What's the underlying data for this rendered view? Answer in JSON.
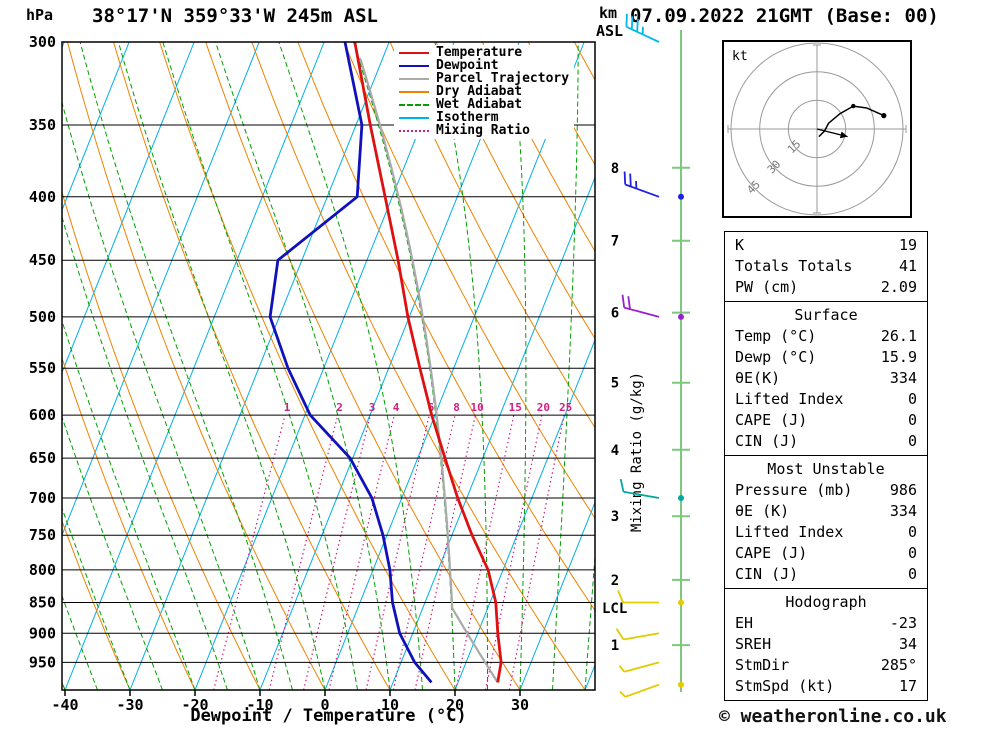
{
  "header": {
    "left_unit": "hPa",
    "title": "38°17'N 359°33'W 245m ASL",
    "right_unit_top": "km",
    "right_unit_bottom": "ASL",
    "datetime": "07.09.2022 21GMT (Base: 00)"
  },
  "legend": {
    "items": [
      {
        "label": "Temperature",
        "color": "#dd1111",
        "style": "solid"
      },
      {
        "label": "Dewpoint",
        "color": "#1111bb",
        "style": "solid"
      },
      {
        "label": "Parcel Trajectory",
        "color": "#aaaaaa",
        "style": "solid"
      },
      {
        "label": "Dry Adiabat",
        "color": "#ef8300",
        "style": "solid"
      },
      {
        "label": "Wet Adiabat",
        "color": "#00a000",
        "style": "dashed"
      },
      {
        "label": "Isotherm",
        "color": "#00b0e8",
        "style": "solid"
      },
      {
        "label": "Mixing Ratio",
        "color": "#d02080",
        "style": "dotted"
      }
    ]
  },
  "axes": {
    "pressure_ticks": [
      300,
      350,
      400,
      450,
      500,
      550,
      600,
      650,
      700,
      750,
      800,
      850,
      900,
      950
    ],
    "temp_ticks": [
      -40,
      -30,
      -20,
      -10,
      0,
      10,
      20,
      30
    ],
    "xlabel": "Dewpoint / Temperature (°C)",
    "right_axis_label": "Mixing Ratio (g/kg)",
    "km_marks": [
      {
        "km": 8,
        "p": 379
      },
      {
        "km": 7,
        "p": 434
      },
      {
        "km": 6,
        "p": 496
      },
      {
        "km": 5,
        "p": 565
      },
      {
        "km": 4,
        "p": 640
      },
      {
        "km": 3,
        "p": 724
      },
      {
        "km": 2,
        "p": 815
      },
      {
        "km": 1,
        "p": 920
      }
    ],
    "lcl": {
      "label": "LCL",
      "p": 859
    }
  },
  "chart_data": {
    "type": "skewt_log_p",
    "pressure_range_hpa": [
      300,
      1000
    ],
    "temp_axis_range_c": [
      -40,
      40
    ],
    "isotherms_c": {
      "start": -100,
      "end": 40,
      "step": 10
    },
    "dry_adiabats_theta_c": {
      "start": -40,
      "end": 120,
      "step": 10
    },
    "wet_adiabats_thetaw_c": {
      "start": -40,
      "end": 40,
      "step": 5
    },
    "mixing_ratio_gkg": [
      1,
      2,
      3,
      4,
      6,
      8,
      10,
      15,
      20,
      25
    ],
    "temperature_profile": [
      [
        986,
        26.1
      ],
      [
        950,
        25.4
      ],
      [
        900,
        23.1
      ],
      [
        850,
        20.9
      ],
      [
        800,
        17.7
      ],
      [
        750,
        13.1
      ],
      [
        700,
        8.6
      ],
      [
        650,
        4.2
      ],
      [
        600,
        -0.5
      ],
      [
        550,
        -5.2
      ],
      [
        500,
        -10.2
      ],
      [
        450,
        -15.2
      ],
      [
        400,
        -21.1
      ],
      [
        350,
        -27.8
      ],
      [
        300,
        -35.3
      ]
    ],
    "dewpoint_profile": [
      [
        986,
        15.9
      ],
      [
        950,
        12.1
      ],
      [
        900,
        8.0
      ],
      [
        850,
        5.0
      ],
      [
        800,
        2.6
      ],
      [
        750,
        -0.6
      ],
      [
        700,
        -4.6
      ],
      [
        650,
        -10.4
      ],
      [
        600,
        -19.2
      ],
      [
        550,
        -25.5
      ],
      [
        500,
        -31.4
      ],
      [
        450,
        -33.7
      ],
      [
        400,
        -25.4
      ],
      [
        350,
        -29.1
      ],
      [
        300,
        -36.8
      ]
    ],
    "parcel": {
      "surface_p": 986,
      "surface_t": 26.1,
      "lcl_p": 859
    },
    "colors": {
      "temperature": "#dd1111",
      "dewpoint": "#1111bb",
      "parcel": "#aaaaaa",
      "dry_adiabat": "#ef8300",
      "wet_adiabat": "#00a000",
      "isotherm": "#00b0e8",
      "mixing_ratio": "#d02080",
      "grid": "#000000",
      "altitude_axis": "#7cc87c"
    }
  },
  "wind_barbs": [
    {
      "p": 300,
      "dir": 295,
      "speed_kt": 35,
      "color": "#00b8f0",
      "dot": false
    },
    {
      "p": 400,
      "dir": 290,
      "speed_kt": 25,
      "color": "#2020e0",
      "dot": true
    },
    {
      "p": 500,
      "dir": 285,
      "speed_kt": 20,
      "color": "#9820d0",
      "dot": true
    },
    {
      "p": 700,
      "dir": 280,
      "speed_kt": 10,
      "color": "#00a8a0",
      "dot": true
    },
    {
      "p": 850,
      "dir": 270,
      "speed_kt": 10,
      "color": "#e0cc00",
      "dot": true
    },
    {
      "p": 900,
      "dir": 260,
      "speed_kt": 10,
      "color": "#e0cc00",
      "dot": false
    },
    {
      "p": 950,
      "dir": 255,
      "speed_kt": 5,
      "color": "#e0cc00",
      "dot": false
    },
    {
      "p": 990,
      "dir": 250,
      "speed_kt": 5,
      "color": "#e0cc00",
      "dot": true
    }
  ],
  "hodograph": {
    "unit": "kt",
    "rings_kt": [
      15,
      30,
      45
    ],
    "trace_kt": [
      [
        1,
        -4
      ],
      [
        4,
        -1
      ],
      [
        6,
        3
      ],
      [
        12,
        8
      ],
      [
        19,
        12
      ],
      [
        26,
        11
      ],
      [
        35,
        7
      ]
    ],
    "storm_motion_kt": [
      16,
      -4
    ]
  },
  "tables": [
    {
      "rows": [
        [
          "K",
          "19"
        ],
        [
          "Totals Totals",
          "41"
        ],
        [
          "PW (cm)",
          "2.09"
        ]
      ]
    },
    {
      "header": "Surface",
      "rows": [
        [
          "Temp (°C)",
          "26.1"
        ],
        [
          "Dewp (°C)",
          "15.9"
        ],
        [
          "θE(K)",
          "334"
        ],
        [
          "Lifted Index",
          "0"
        ],
        [
          "CAPE (J)",
          "0"
        ],
        [
          "CIN (J)",
          "0"
        ]
      ]
    },
    {
      "header": "Most Unstable",
      "rows": [
        [
          "Pressure (mb)",
          "986"
        ],
        [
          "θE (K)",
          "334"
        ],
        [
          "Lifted Index",
          "0"
        ],
        [
          "CAPE (J)",
          "0"
        ],
        [
          "CIN (J)",
          "0"
        ]
      ]
    },
    {
      "header": "Hodograph",
      "rows": [
        [
          "EH",
          "-23"
        ],
        [
          "SREH",
          "34"
        ],
        [
          "StmDir",
          "285°"
        ],
        [
          "StmSpd (kt)",
          "17"
        ]
      ]
    }
  ],
  "footer": {
    "copyright": "© weatheronline.co.uk"
  }
}
